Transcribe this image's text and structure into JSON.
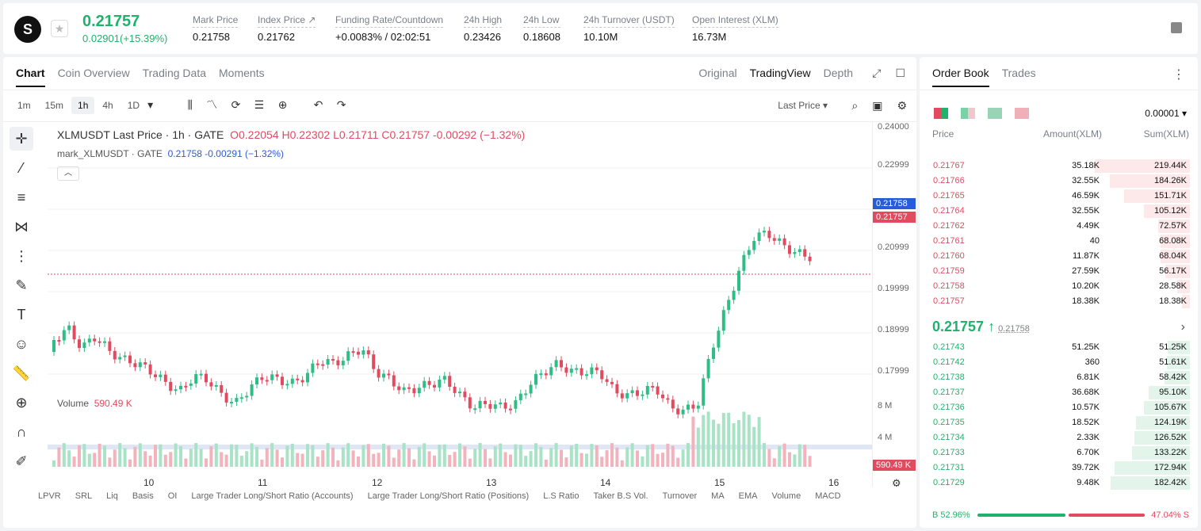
{
  "header": {
    "logo_glyph": "S",
    "last_price": "0.21757",
    "change": "0.02901(+15.39%)",
    "stats": [
      {
        "label": "Mark Price",
        "value": "0.21758"
      },
      {
        "label": "Index Price ↗",
        "value": "0.21762"
      },
      {
        "label": "Funding Rate/Countdown",
        "value": "+0.0083%  / 02:02:51"
      },
      {
        "label": "24h High",
        "value": "0.23426"
      },
      {
        "label": "24h Low",
        "value": "0.18608"
      },
      {
        "label": "24h Turnover (USDT)",
        "value": "10.10M"
      },
      {
        "label": "Open Interest (XLM)",
        "value": "16.73M"
      }
    ]
  },
  "chart_tabs": [
    "Chart",
    "Coin Overview",
    "Trading Data",
    "Moments"
  ],
  "view_tabs": [
    "Original",
    "TradingView",
    "Depth"
  ],
  "timeframes": [
    "1m",
    "15m",
    "1h",
    "4h",
    "1D"
  ],
  "toolbar": {
    "price_type": "Last Price ▾"
  },
  "legend": {
    "title": "XLMUSDT Last Price · 1h · GATE",
    "ohlc": "O0.22054 H0.22302 L0.21711 C0.21757 -0.00292 (−1.32%)",
    "mark_label": "mark_XLMUSDT · GATE",
    "mark_vals": "0.21758 -0.00291 (−1.32%)"
  },
  "volume": {
    "label": "Volume",
    "value": "590.49 K",
    "axis": [
      "8 M",
      "4 M"
    ],
    "badge": "590.49 K"
  },
  "price_axis": [
    "0.24000",
    "0.22999",
    "0.20999",
    "0.19999",
    "0.18999",
    "0.17999"
  ],
  "price_badges": {
    "mark": "0.21758",
    "last": "0.21757"
  },
  "date_axis": [
    "10",
    "11",
    "12",
    "13",
    "14",
    "15",
    "16"
  ],
  "indicators": [
    "LPVR",
    "SRL",
    "Liq",
    "Basis",
    "OI",
    "Large Trader Long/Short Ratio (Accounts)",
    "Large Trader Long/Short Ratio (Positions)",
    "L.S Ratio",
    "Taker B.S Vol.",
    "Turnover",
    "MA",
    "EMA",
    "Volume",
    "MACD"
  ],
  "orderbook": {
    "tabs": [
      "Order Book",
      "Trades"
    ],
    "precision": "0.00001 ▾",
    "headers": [
      "Price",
      "Amount(XLM)",
      "Sum(XLM)"
    ],
    "asks": [
      {
        "p": "0.21767",
        "a": "35.18K",
        "s": "219.44K",
        "f": 1.0
      },
      {
        "p": "0.21766",
        "a": "32.55K",
        "s": "184.26K",
        "f": 0.84
      },
      {
        "p": "0.21765",
        "a": "46.59K",
        "s": "151.71K",
        "f": 0.69
      },
      {
        "p": "0.21764",
        "a": "32.55K",
        "s": "105.12K",
        "f": 0.48
      },
      {
        "p": "0.21762",
        "a": "4.49K",
        "s": "72.57K",
        "f": 0.33
      },
      {
        "p": "0.21761",
        "a": "40",
        "s": "68.08K",
        "f": 0.31
      },
      {
        "p": "0.21760",
        "a": "11.87K",
        "s": "68.04K",
        "f": 0.31
      },
      {
        "p": "0.21759",
        "a": "27.59K",
        "s": "56.17K",
        "f": 0.26
      },
      {
        "p": "0.21758",
        "a": "10.20K",
        "s": "28.58K",
        "f": 0.13
      },
      {
        "p": "0.21757",
        "a": "18.38K",
        "s": "18.38K",
        "f": 0.08
      }
    ],
    "mid_price": "0.21757 ↑",
    "mid_mark": "0.21758",
    "bids": [
      {
        "p": "0.21743",
        "a": "51.25K",
        "s": "51.25K",
        "f": 0.23
      },
      {
        "p": "0.21742",
        "a": "360",
        "s": "51.61K",
        "f": 0.24
      },
      {
        "p": "0.21738",
        "a": "6.81K",
        "s": "58.42K",
        "f": 0.27
      },
      {
        "p": "0.21737",
        "a": "36.68K",
        "s": "95.10K",
        "f": 0.43
      },
      {
        "p": "0.21736",
        "a": "10.57K",
        "s": "105.67K",
        "f": 0.48
      },
      {
        "p": "0.21735",
        "a": "18.52K",
        "s": "124.19K",
        "f": 0.57
      },
      {
        "p": "0.21734",
        "a": "2.33K",
        "s": "126.52K",
        "f": 0.58
      },
      {
        "p": "0.21733",
        "a": "6.70K",
        "s": "133.22K",
        "f": 0.61
      },
      {
        "p": "0.21731",
        "a": "39.72K",
        "s": "172.94K",
        "f": 0.79
      },
      {
        "p": "0.21729",
        "a": "9.48K",
        "s": "182.42K",
        "f": 0.83
      }
    ],
    "buy_ratio": "B 52.96%",
    "sell_ratio": "47.04% S"
  },
  "colors": {
    "up": "#20b26c",
    "down": "#e04b5f",
    "mark": "#2a5bd7"
  }
}
